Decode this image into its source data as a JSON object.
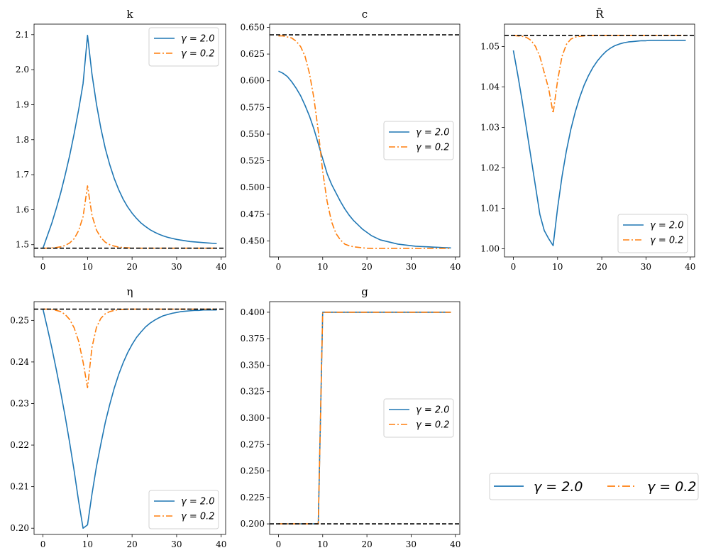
{
  "colors": {
    "series1": "#1f77b4",
    "series2": "#ff7f0e",
    "steady_state": "#000000"
  },
  "figure_legend": {
    "entries": [
      "γ = 2.0",
      "γ = 0.2"
    ],
    "placement": "bottom-right"
  },
  "chart_data": [
    {
      "type": "line",
      "title": "k",
      "x": [
        0,
        1,
        2,
        3,
        4,
        5,
        6,
        7,
        8,
        9,
        10,
        11,
        12,
        13,
        14,
        15,
        16,
        17,
        18,
        19,
        20,
        21,
        22,
        23,
        24,
        25,
        26,
        27,
        28,
        29,
        30,
        31,
        32,
        33,
        34,
        35,
        36,
        37,
        38,
        39
      ],
      "xlim": [
        -2,
        41
      ],
      "ylim": [
        1.465,
        2.13
      ],
      "yticks": [
        "1.5",
        "1.6",
        "1.7",
        "1.8",
        "1.9",
        "2.0",
        "2.1"
      ],
      "xticks": [
        "0",
        "10",
        "20",
        "30",
        "40"
      ],
      "steady_state": 1.49,
      "series": [
        {
          "name": "γ = 2.0",
          "style": "solid",
          "values": [
            1.49,
            1.526,
            1.562,
            1.604,
            1.649,
            1.7,
            1.755,
            1.817,
            1.885,
            1.96,
            2.098,
            1.987,
            1.902,
            1.832,
            1.774,
            1.728,
            1.689,
            1.657,
            1.63,
            1.608,
            1.59,
            1.575,
            1.562,
            1.552,
            1.543,
            1.536,
            1.53,
            1.525,
            1.521,
            1.518,
            1.515,
            1.513,
            1.511,
            1.509,
            1.508,
            1.507,
            1.506,
            1.505,
            1.504,
            1.503
          ]
        },
        {
          "name": "γ = 0.2",
          "style": "dashdot",
          "values": [
            1.49,
            1.49,
            1.491,
            1.492,
            1.494,
            1.498,
            1.505,
            1.517,
            1.54,
            1.58,
            1.668,
            1.584,
            1.542,
            1.52,
            1.507,
            1.5,
            1.496,
            1.493,
            1.492,
            1.491,
            1.49,
            1.49,
            1.49,
            1.49,
            1.49,
            1.49,
            1.49,
            1.49,
            1.49,
            1.49,
            1.49,
            1.49,
            1.49,
            1.49,
            1.49,
            1.49,
            1.49,
            1.49,
            1.49,
            1.49
          ]
        }
      ],
      "legend": {
        "entries": [
          "γ = 2.0",
          "γ = 0.2"
        ],
        "placement": "upper right"
      }
    },
    {
      "type": "line",
      "title": "c",
      "x": [
        0,
        1,
        2,
        3,
        4,
        5,
        6,
        7,
        8,
        9,
        10,
        11,
        12,
        13,
        14,
        15,
        16,
        17,
        18,
        19,
        20,
        21,
        22,
        23,
        24,
        25,
        26,
        27,
        28,
        29,
        30,
        31,
        32,
        33,
        34,
        35,
        36,
        37,
        38,
        39
      ],
      "xlim": [
        -2,
        41
      ],
      "ylim": [
        0.435,
        0.653
      ],
      "yticks": [
        "0.450",
        "0.475",
        "0.500",
        "0.525",
        "0.550",
        "0.575",
        "0.600",
        "0.625",
        "0.650"
      ],
      "xticks": [
        "0",
        "10",
        "20",
        "30",
        "40"
      ],
      "steady_state": 0.643,
      "series": [
        {
          "name": "γ = 2.0",
          "style": "solid",
          "values": [
            0.609,
            0.607,
            0.604,
            0.599,
            0.593,
            0.586,
            0.577,
            0.567,
            0.555,
            0.541,
            0.527,
            0.513,
            0.503,
            0.495,
            0.487,
            0.48,
            0.474,
            0.469,
            0.465,
            0.461,
            0.458,
            0.455,
            0.453,
            0.451,
            0.45,
            0.449,
            0.448,
            0.447,
            0.4465,
            0.446,
            0.4455,
            0.445,
            0.4448,
            0.4446,
            0.4444,
            0.4442,
            0.444,
            0.4438,
            0.4436,
            0.4434
          ]
        },
        {
          "name": "γ = 0.2",
          "style": "dashdot",
          "values": [
            0.642,
            0.642,
            0.641,
            0.64,
            0.637,
            0.632,
            0.623,
            0.607,
            0.584,
            0.553,
            0.515,
            0.487,
            0.468,
            0.457,
            0.451,
            0.447,
            0.4455,
            0.4445,
            0.444,
            0.4435,
            0.4432,
            0.443,
            0.443,
            0.443,
            0.443,
            0.443,
            0.443,
            0.443,
            0.443,
            0.443,
            0.443,
            0.443,
            0.443,
            0.443,
            0.443,
            0.443,
            0.443,
            0.443,
            0.443,
            0.443
          ]
        }
      ],
      "legend": {
        "entries": [
          "γ = 2.0",
          "γ = 0.2"
        ],
        "placement": "center right"
      }
    },
    {
      "type": "line",
      "title": "R̄",
      "x": [
        0,
        1,
        2,
        3,
        4,
        5,
        6,
        7,
        8,
        9,
        10,
        11,
        12,
        13,
        14,
        15,
        16,
        17,
        18,
        19,
        20,
        21,
        22,
        23,
        24,
        25,
        26,
        27,
        28,
        29,
        30,
        31,
        32,
        33,
        34,
        35,
        36,
        37,
        38,
        39
      ],
      "xlim": [
        -2,
        41
      ],
      "ylim": [
        0.998,
        1.0555
      ],
      "yticks": [
        "1.00",
        "1.01",
        "1.02",
        "1.03",
        "1.04",
        "1.05"
      ],
      "xticks": [
        "0",
        "10",
        "20",
        "30",
        "40"
      ],
      "steady_state": 1.0527,
      "series": [
        {
          "name": "γ = 2.0",
          "style": "solid",
          "values": [
            1.049,
            1.043,
            1.0365,
            1.0295,
            1.0225,
            1.0155,
            1.0085,
            1.0045,
            1.0025,
            1.0008,
            1.01,
            1.0178,
            1.0242,
            1.0295,
            1.0338,
            1.0374,
            1.0404,
            1.0428,
            1.0448,
            1.0464,
            1.0477,
            1.0488,
            1.0496,
            1.0502,
            1.0506,
            1.0509,
            1.0511,
            1.0512,
            1.0513,
            1.0514,
            1.0514,
            1.0515,
            1.0515,
            1.0515,
            1.0515,
            1.0515,
            1.0515,
            1.0515,
            1.0515,
            1.0515
          ]
        },
        {
          "name": "γ = 0.2",
          "style": "dashdot",
          "values": [
            1.0527,
            1.0526,
            1.0525,
            1.0522,
            1.0515,
            1.05,
            1.0475,
            1.0435,
            1.0395,
            1.0335,
            1.0415,
            1.0475,
            1.0505,
            1.0518,
            1.0523,
            1.0525,
            1.0526,
            1.0527,
            1.0527,
            1.0527,
            1.0527,
            1.0527,
            1.0527,
            1.0527,
            1.0527,
            1.0527,
            1.0527,
            1.0527,
            1.0527,
            1.0527,
            1.0527,
            1.0527,
            1.0527,
            1.0527,
            1.0527,
            1.0527,
            1.0527,
            1.0527,
            1.0527,
            1.0527
          ]
        }
      ],
      "legend": {
        "entries": [
          "γ = 2.0",
          "γ = 0.2"
        ],
        "placement": "lower right"
      }
    },
    {
      "type": "line",
      "title": "η",
      "x": [
        0,
        1,
        2,
        3,
        4,
        5,
        6,
        7,
        8,
        9,
        10,
        11,
        12,
        13,
        14,
        15,
        16,
        17,
        18,
        19,
        20,
        21,
        22,
        23,
        24,
        25,
        26,
        27,
        28,
        29,
        30,
        31,
        32,
        33,
        34,
        35,
        36,
        37,
        38,
        39
      ],
      "xlim": [
        -2,
        41
      ],
      "ylim": [
        0.1985,
        0.2545
      ],
      "yticks": [
        "0.20",
        "0.21",
        "0.22",
        "0.23",
        "0.24",
        "0.25"
      ],
      "xticks": [
        "0",
        "10",
        "20",
        "30",
        "40"
      ],
      "steady_state": 0.2527,
      "series": [
        {
          "name": "γ = 2.0",
          "style": "solid",
          "values": [
            0.2527,
            0.2481,
            0.2433,
            0.2381,
            0.2326,
            0.2268,
            0.2205,
            0.2138,
            0.2065,
            0.2,
            0.2008,
            0.2082,
            0.2148,
            0.2203,
            0.2255,
            0.2298,
            0.2337,
            0.237,
            0.2398,
            0.2422,
            0.2442,
            0.2459,
            0.2472,
            0.2484,
            0.2493,
            0.25,
            0.2506,
            0.2511,
            0.2514,
            0.2517,
            0.2519,
            0.2521,
            0.2522,
            0.2523,
            0.2524,
            0.2524,
            0.2525,
            0.2525,
            0.2525,
            0.2525
          ]
        },
        {
          "name": "γ = 0.2",
          "style": "dashdot",
          "values": [
            0.2527,
            0.2527,
            0.2526,
            0.2524,
            0.2521,
            0.2514,
            0.2502,
            0.2482,
            0.245,
            0.24,
            0.2338,
            0.2435,
            0.2483,
            0.2505,
            0.2516,
            0.2521,
            0.2524,
            0.2526,
            0.2526,
            0.2527,
            0.2527,
            0.2527,
            0.2527,
            0.2527,
            0.2527,
            0.2527,
            0.2527,
            0.2527,
            0.2527,
            0.2527,
            0.2527,
            0.2527,
            0.2527,
            0.2527,
            0.2527,
            0.2527,
            0.2527,
            0.2527,
            0.2527,
            0.2527
          ]
        }
      ],
      "legend": {
        "entries": [
          "γ = 2.0",
          "γ = 0.2"
        ],
        "placement": "lower right"
      }
    },
    {
      "type": "line",
      "title": "g",
      "x": [
        0,
        1,
        2,
        3,
        4,
        5,
        6,
        7,
        8,
        9,
        10,
        11,
        12,
        13,
        14,
        15,
        16,
        17,
        18,
        19,
        20,
        21,
        22,
        23,
        24,
        25,
        26,
        27,
        28,
        29,
        30,
        31,
        32,
        33,
        34,
        35,
        36,
        37,
        38,
        39
      ],
      "xlim": [
        -2,
        41
      ],
      "ylim": [
        0.19,
        0.41
      ],
      "yticks": [
        "0.200",
        "0.225",
        "0.250",
        "0.275",
        "0.300",
        "0.325",
        "0.350",
        "0.375",
        "0.400"
      ],
      "xticks": [
        "0",
        "10",
        "20",
        "30",
        "40"
      ],
      "steady_state": 0.2,
      "series": [
        {
          "name": "γ = 2.0",
          "style": "solid",
          "values": [
            0.2,
            0.2,
            0.2,
            0.2,
            0.2,
            0.2,
            0.2,
            0.2,
            0.2,
            0.2,
            0.4,
            0.4,
            0.4,
            0.4,
            0.4,
            0.4,
            0.4,
            0.4,
            0.4,
            0.4,
            0.4,
            0.4,
            0.4,
            0.4,
            0.4,
            0.4,
            0.4,
            0.4,
            0.4,
            0.4,
            0.4,
            0.4,
            0.4,
            0.4,
            0.4,
            0.4,
            0.4,
            0.4,
            0.4,
            0.4
          ]
        },
        {
          "name": "γ = 0.2",
          "style": "dashdot",
          "values": [
            0.2,
            0.2,
            0.2,
            0.2,
            0.2,
            0.2,
            0.2,
            0.2,
            0.2,
            0.2,
            0.4,
            0.4,
            0.4,
            0.4,
            0.4,
            0.4,
            0.4,
            0.4,
            0.4,
            0.4,
            0.4,
            0.4,
            0.4,
            0.4,
            0.4,
            0.4,
            0.4,
            0.4,
            0.4,
            0.4,
            0.4,
            0.4,
            0.4,
            0.4,
            0.4,
            0.4,
            0.4,
            0.4,
            0.4,
            0.4
          ]
        }
      ],
      "legend": {
        "entries": [
          "γ = 2.0",
          "γ = 0.2"
        ],
        "placement": "center right"
      }
    }
  ]
}
